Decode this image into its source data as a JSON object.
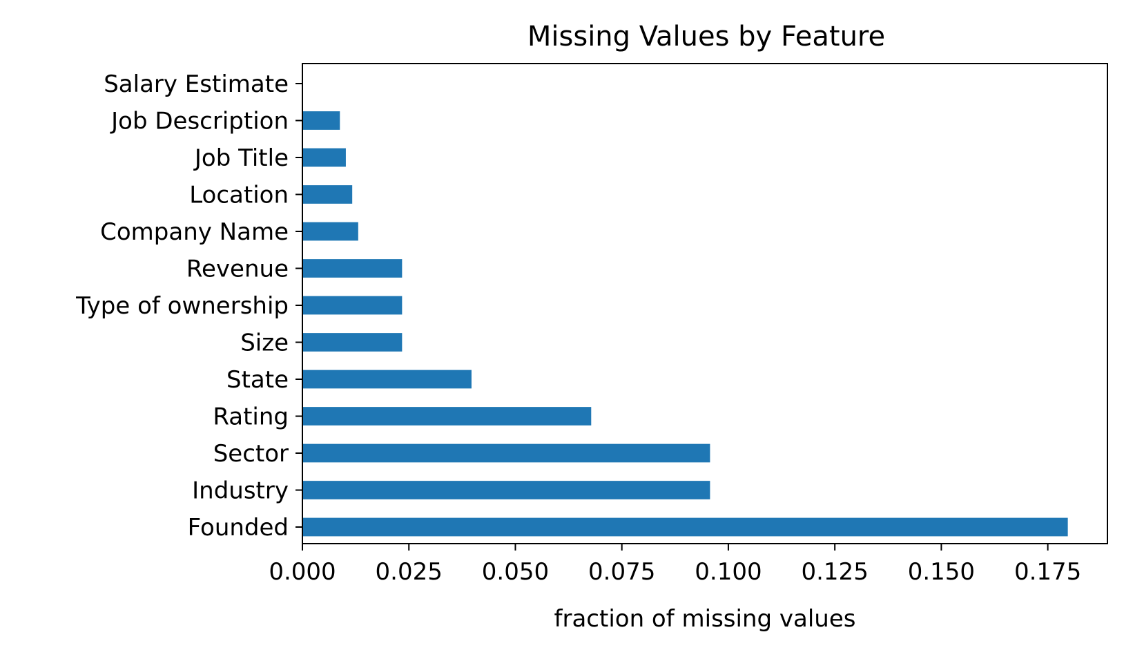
{
  "chart_data": {
    "type": "bar",
    "orientation": "horizontal",
    "title": "Missing Values by Feature",
    "xlabel": "fraction of missing values",
    "ylabel": "",
    "xlim": [
      0,
      0.189
    ],
    "xticks": [
      "0.000",
      "0.025",
      "0.050",
      "0.075",
      "0.100",
      "0.125",
      "0.150",
      "0.175"
    ],
    "categories": [
      "Salary Estimate",
      "Job Description",
      "Job Title",
      "Location",
      "Company Name",
      "Revenue",
      "Type of ownership",
      "Size",
      "State",
      "Rating",
      "Sector",
      "Industry",
      "Founded"
    ],
    "values": [
      0.0,
      0.0088,
      0.0102,
      0.0117,
      0.0131,
      0.0234,
      0.0234,
      0.0234,
      0.0397,
      0.0678,
      0.0957,
      0.0957,
      0.1797
    ],
    "bar_color": "#1f77b4",
    "grid": false,
    "legend": "none"
  }
}
